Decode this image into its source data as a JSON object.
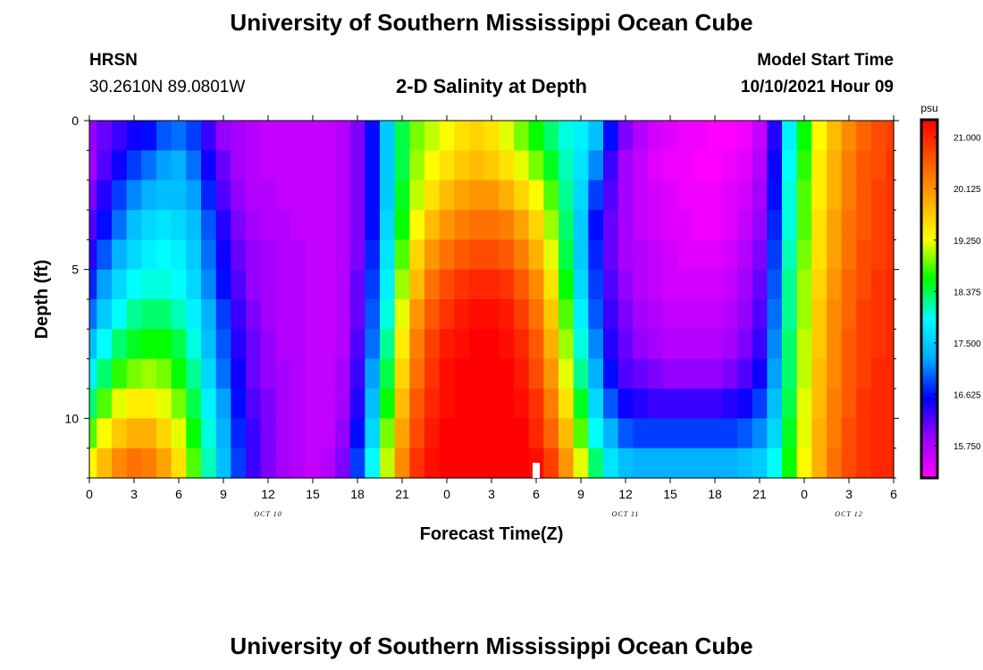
{
  "header": {
    "title": "University of Southern Mississippi Ocean Cube",
    "station": "HRSN",
    "coordinates": "30.2610N  89.0801W",
    "plot_title": "2-D Salinity at Depth",
    "model_start_label": "Model Start Time",
    "model_start_value": "10/10/2021 Hour 09"
  },
  "footer": {
    "title": "University of Southern Mississippi Ocean Cube"
  },
  "chart_data": {
    "type": "heatmap",
    "title": "2-D Salinity at Depth",
    "xlabel": "Forecast Time(Z)",
    "ylabel": "Depth (ft)",
    "x_range_hours": [
      0,
      54
    ],
    "y_range_ft": [
      0,
      12
    ],
    "x_tick_labels": [
      "0",
      "3",
      "6",
      "9",
      "12",
      "15",
      "18",
      "21",
      "0",
      "3",
      "6",
      "9",
      "12",
      "15",
      "18",
      "21",
      "0",
      "3",
      "6"
    ],
    "y_tick_labels": [
      "0",
      "5",
      "10"
    ],
    "y_tick_values": [
      0,
      5,
      10
    ],
    "date_labels": [
      {
        "text": "OCT 10",
        "hour": 12
      },
      {
        "text": "OCT 11",
        "hour": 36
      },
      {
        "text": "OCT 12",
        "hour": 51
      }
    ],
    "current_time_marker_hour": 30,
    "colorbar": {
      "unit": "psu",
      "min": 15.2,
      "max": 21.3,
      "tick_values": [
        21.0,
        20.125,
        19.25,
        18.375,
        17.5,
        16.625,
        15.75
      ],
      "tick_labels": [
        "21.000",
        "20.125",
        "19.250",
        "18.375",
        "17.500",
        "16.625",
        "15.750"
      ],
      "colors": [
        "#ff00ff",
        "#9a00ff",
        "#0000ff",
        "#00aaff",
        "#00ffff",
        "#00ff00",
        "#ffff00",
        "#ffaa00",
        "#ff5500",
        "#ff0000"
      ]
    },
    "depth_levels_ft": [
      0.5,
      1.5,
      2.5,
      3.5,
      4.5,
      5.5,
      6.5,
      7.5,
      8.5,
      9.5,
      10.5,
      11.5
    ],
    "time_knots_hours": [
      0,
      1,
      2,
      3,
      4,
      5,
      6,
      7,
      8,
      9,
      10,
      11,
      12,
      13,
      14,
      15,
      16,
      17,
      18,
      19,
      20,
      21,
      22,
      23,
      24,
      25,
      26,
      27,
      28,
      29,
      30,
      31,
      32,
      33,
      34,
      35,
      36,
      37,
      38,
      39,
      40,
      41,
      42,
      43,
      44,
      45,
      46,
      47,
      48,
      49,
      50,
      51,
      52,
      53,
      54
    ],
    "salinity_psu": [
      [
        15.9,
        16.1,
        16.3,
        16.5,
        16.6,
        16.9,
        17.0,
        16.8,
        16.3,
        15.9,
        15.8,
        15.7,
        15.6,
        15.6,
        15.6,
        15.6,
        15.6,
        15.7,
        16.0,
        16.6,
        17.5,
        18.4,
        18.9,
        19.1,
        19.3,
        19.5,
        19.6,
        19.5,
        19.2,
        18.9,
        18.6,
        18.3,
        18.0,
        17.8,
        17.4,
        16.6,
        16.0,
        15.7,
        15.5,
        15.4,
        15.3,
        15.3,
        15.2,
        15.2,
        15.3,
        15.6,
        16.4,
        17.8,
        18.6,
        19.3,
        19.8,
        20.2,
        20.5,
        20.7,
        20.8
      ],
      [
        15.8,
        16.2,
        16.5,
        16.8,
        17.0,
        17.2,
        17.3,
        17.0,
        16.5,
        16.1,
        15.8,
        15.7,
        15.6,
        15.6,
        15.6,
        15.6,
        15.6,
        15.7,
        16.0,
        16.6,
        17.5,
        18.4,
        19.0,
        19.3,
        19.5,
        19.7,
        19.8,
        19.7,
        19.5,
        19.2,
        18.9,
        18.5,
        18.1,
        17.7,
        17.1,
        16.3,
        15.8,
        15.6,
        15.4,
        15.3,
        15.3,
        15.2,
        15.2,
        15.3,
        15.4,
        15.7,
        16.5,
        17.9,
        18.7,
        19.4,
        19.9,
        20.3,
        20.6,
        20.7,
        20.9
      ],
      [
        16.0,
        16.4,
        16.8,
        17.1,
        17.3,
        17.4,
        17.4,
        17.2,
        16.7,
        16.2,
        15.9,
        15.7,
        15.7,
        15.6,
        15.6,
        15.6,
        15.6,
        15.7,
        16.0,
        16.6,
        17.5,
        18.5,
        19.1,
        19.5,
        19.8,
        20.0,
        20.1,
        20.1,
        19.9,
        19.6,
        19.3,
        18.8,
        18.2,
        17.6,
        16.8,
        16.2,
        15.8,
        15.6,
        15.5,
        15.4,
        15.3,
        15.3,
        15.3,
        15.4,
        15.5,
        15.8,
        16.6,
        18.0,
        18.8,
        19.4,
        19.9,
        20.3,
        20.6,
        20.8,
        20.9
      ],
      [
        16.2,
        16.6,
        17.0,
        17.4,
        17.6,
        17.7,
        17.6,
        17.4,
        16.9,
        16.4,
        16.0,
        15.8,
        15.7,
        15.7,
        15.6,
        15.6,
        15.6,
        15.7,
        16.0,
        16.6,
        17.6,
        18.6,
        19.3,
        19.8,
        20.1,
        20.3,
        20.4,
        20.4,
        20.3,
        20.0,
        19.6,
        19.0,
        18.3,
        17.5,
        16.6,
        16.1,
        15.8,
        15.6,
        15.5,
        15.4,
        15.4,
        15.3,
        15.3,
        15.4,
        15.6,
        15.9,
        16.7,
        18.0,
        18.8,
        19.5,
        20.0,
        20.4,
        20.6,
        20.8,
        20.9
      ],
      [
        16.4,
        16.9,
        17.3,
        17.6,
        17.8,
        17.9,
        17.8,
        17.5,
        17.0,
        16.5,
        16.1,
        15.9,
        15.8,
        15.7,
        15.7,
        15.6,
        15.6,
        15.7,
        16.0,
        16.7,
        17.7,
        18.8,
        19.6,
        20.1,
        20.4,
        20.6,
        20.7,
        20.7,
        20.6,
        20.3,
        19.9,
        19.2,
        18.4,
        17.5,
        16.7,
        16.1,
        15.8,
        15.7,
        15.6,
        15.5,
        15.4,
        15.4,
        15.4,
        15.5,
        15.7,
        16.0,
        16.8,
        18.1,
        18.9,
        19.5,
        20.0,
        20.4,
        20.7,
        20.8,
        20.9
      ],
      [
        16.7,
        17.2,
        17.6,
        17.9,
        18.0,
        18.0,
        17.9,
        17.6,
        17.1,
        16.6,
        16.2,
        15.9,
        15.8,
        15.7,
        15.7,
        15.6,
        15.6,
        15.7,
        16.1,
        16.8,
        17.8,
        19.0,
        19.8,
        20.4,
        20.7,
        20.9,
        21.0,
        21.0,
        20.9,
        20.6,
        20.2,
        19.5,
        18.6,
        17.6,
        16.8,
        16.2,
        15.9,
        15.7,
        15.6,
        15.5,
        15.5,
        15.5,
        15.5,
        15.6,
        15.8,
        16.1,
        16.9,
        18.2,
        19.0,
        19.6,
        20.1,
        20.5,
        20.7,
        20.9,
        21.0
      ],
      [
        17.0,
        17.5,
        17.9,
        18.2,
        18.3,
        18.3,
        18.1,
        17.8,
        17.3,
        16.8,
        16.3,
        16.0,
        15.8,
        15.7,
        15.7,
        15.6,
        15.6,
        15.7,
        16.1,
        16.9,
        18.0,
        19.2,
        20.1,
        20.6,
        20.9,
        21.1,
        21.2,
        21.2,
        21.1,
        20.8,
        20.4,
        19.7,
        18.8,
        17.8,
        16.9,
        16.3,
        16.0,
        15.8,
        15.7,
        15.6,
        15.6,
        15.6,
        15.6,
        15.7,
        15.9,
        16.2,
        17.0,
        18.2,
        19.0,
        19.7,
        20.2,
        20.5,
        20.8,
        20.9,
        21.0
      ],
      [
        17.4,
        17.9,
        18.3,
        18.5,
        18.6,
        18.6,
        18.4,
        18.0,
        17.4,
        16.9,
        16.4,
        16.1,
        15.9,
        15.7,
        15.7,
        15.6,
        15.6,
        15.7,
        16.2,
        17.0,
        18.2,
        19.4,
        20.3,
        20.8,
        21.1,
        21.2,
        21.3,
        21.3,
        21.2,
        21.0,
        20.6,
        19.9,
        19.0,
        18.0,
        17.1,
        16.4,
        16.1,
        15.9,
        15.8,
        15.7,
        15.7,
        15.7,
        15.7,
        15.8,
        16.0,
        16.3,
        17.1,
        18.3,
        19.1,
        19.7,
        20.2,
        20.6,
        20.8,
        20.9,
        21.0
      ],
      [
        17.8,
        18.3,
        18.7,
        18.9,
        19.0,
        18.9,
        18.6,
        18.2,
        17.6,
        17.0,
        16.5,
        16.1,
        15.9,
        15.8,
        15.7,
        15.6,
        15.6,
        15.8,
        16.3,
        17.2,
        18.4,
        19.6,
        20.4,
        20.9,
        21.2,
        21.3,
        21.3,
        21.3,
        21.3,
        21.1,
        20.7,
        20.1,
        19.2,
        18.2,
        17.3,
        16.6,
        16.2,
        16.1,
        16.0,
        15.9,
        15.9,
        15.9,
        15.9,
        16.0,
        16.2,
        16.5,
        17.2,
        18.3,
        19.1,
        19.8,
        20.2,
        20.6,
        20.8,
        21.0,
        21.0
      ],
      [
        18.3,
        18.8,
        19.2,
        19.4,
        19.4,
        19.2,
        18.9,
        18.4,
        17.8,
        17.2,
        16.6,
        16.2,
        16.0,
        15.8,
        15.7,
        15.6,
        15.6,
        15.8,
        16.4,
        17.4,
        18.6,
        19.8,
        20.6,
        21.0,
        21.2,
        21.3,
        21.3,
        21.3,
        21.3,
        21.2,
        20.9,
        20.3,
        19.5,
        18.5,
        17.6,
        16.9,
        16.5,
        16.4,
        16.3,
        16.3,
        16.3,
        16.3,
        16.3,
        16.4,
        16.5,
        16.8,
        17.4,
        18.4,
        19.2,
        19.8,
        20.3,
        20.6,
        20.9,
        21.0,
        21.0
      ],
      [
        18.8,
        19.3,
        19.7,
        19.9,
        19.9,
        19.6,
        19.2,
        18.6,
        18.0,
        17.3,
        16.7,
        16.3,
        16.0,
        15.8,
        15.7,
        15.6,
        15.6,
        15.9,
        16.6,
        17.6,
        18.9,
        20.0,
        20.7,
        21.1,
        21.3,
        21.3,
        21.3,
        21.3,
        21.3,
        21.3,
        21.0,
        20.5,
        19.8,
        18.8,
        17.9,
        17.3,
        16.9,
        16.8,
        16.8,
        16.8,
        16.8,
        16.8,
        16.8,
        16.8,
        16.9,
        17.1,
        17.6,
        18.5,
        19.2,
        19.9,
        20.3,
        20.7,
        20.9,
        21.0,
        21.0
      ],
      [
        19.3,
        19.8,
        20.2,
        20.4,
        20.3,
        20.0,
        19.5,
        18.8,
        18.1,
        17.4,
        16.8,
        16.3,
        16.0,
        15.8,
        15.7,
        15.6,
        15.7,
        16.0,
        16.8,
        17.9,
        19.1,
        20.2,
        20.9,
        21.2,
        21.3,
        21.3,
        21.3,
        21.3,
        21.3,
        21.3,
        21.2,
        20.8,
        20.1,
        19.2,
        18.3,
        17.7,
        17.4,
        17.3,
        17.3,
        17.3,
        17.3,
        17.3,
        17.3,
        17.3,
        17.4,
        17.5,
        17.9,
        18.6,
        19.3,
        19.9,
        20.4,
        20.7,
        20.9,
        21.0,
        21.0
      ]
    ]
  }
}
